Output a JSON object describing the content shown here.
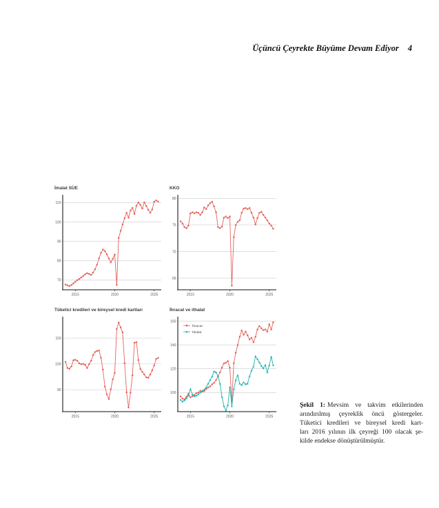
{
  "page": {
    "header": {
      "title": "Üçüncü Çeyrekte Büyüme Devam Ediyor",
      "page_number": "4"
    }
  },
  "caption": {
    "label": "Şekil 1:",
    "line1_rest": "Mevsim ve takvim etkilerinden",
    "lines": [
      "arındırılmış çeyreklik öncü göstergeler.",
      "Tüketici kredileri ve bireysel kredi kart-",
      "ları 2016 yılının ilk çeyreği 100 olacak şe-",
      "kilde endekse dönüştürülmüştür."
    ]
  },
  "colors": {
    "line_red": "#E4635B",
    "line_teal": "#18B3AB",
    "axis": "#3D3D3D",
    "grid": "#C9C9C9",
    "tick_label": "#555555",
    "legend_text": "#444444"
  },
  "chart_data": [
    {
      "type": "line",
      "title": "İmalat SÜE",
      "x_start": 2013.75,
      "x_step": 0.25,
      "xlim": [
        2013.4,
        2025.9
      ],
      "x_ticks": [
        2015,
        2020,
        2025
      ],
      "ylim": [
        65,
        113
      ],
      "y_ticks": [
        70,
        80,
        90,
        100,
        110
      ],
      "grid": true,
      "legend": false,
      "series": [
        {
          "name": "İmalat SÜE",
          "color_key": "line_red",
          "marker": "circle",
          "values": [
            67.7,
            67.3,
            66.9,
            67.5,
            68.3,
            69.2,
            70.0,
            70.6,
            71.4,
            72.2,
            73.0,
            73.6,
            73.2,
            72.7,
            73.9,
            75.6,
            78.0,
            81.2,
            84.1,
            85.8,
            85.0,
            83.3,
            81.2,
            79.2,
            81.0,
            83.2,
            67.6,
            91.8,
            95.5,
            98.8,
            102.0,
            104.8,
            102.3,
            106.0,
            107.3,
            104.2,
            108.5,
            110.1,
            108.9,
            107.0,
            110.2,
            108.3,
            106.3,
            104.8,
            106.5,
            110.5,
            111.2,
            110.6
          ]
        }
      ]
    },
    {
      "type": "line",
      "title": "KKO",
      "x_start": 2013.75,
      "x_step": 0.25,
      "xlim": [
        2013.4,
        2025.9
      ],
      "x_ticks": [
        2015,
        2020,
        2025
      ],
      "ylim": [
        62.8,
        80.3
      ],
      "y_ticks": [
        65,
        70,
        75,
        80
      ],
      "grid": true,
      "legend": false,
      "series": [
        {
          "name": "KKO",
          "color_key": "line_red",
          "marker": "circle",
          "values": [
            75.7,
            75.3,
            74.6,
            74.4,
            74.9,
            77.2,
            77.4,
            77.2,
            77.4,
            77.3,
            76.9,
            77.4,
            78.3,
            78.0,
            78.7,
            79.1,
            79.4,
            78.5,
            77.4,
            74.6,
            74.4,
            74.7,
            76.4,
            76.6,
            76.3,
            76.6,
            63.6,
            72.7,
            75.0,
            75.6,
            75.9,
            77.3,
            78.1,
            78.2,
            78.0,
            78.2,
            77.3,
            76.4,
            75.1,
            76.3,
            77.3,
            77.5,
            76.9,
            76.4,
            75.9,
            75.3,
            74.9,
            74.3
          ]
        }
      ]
    },
    {
      "type": "line",
      "title": "Tüketici kredileri ve bireysel kredi kartları",
      "x_start": 2013.75,
      "x_step": 0.25,
      "xlim": [
        2013.4,
        2025.9
      ],
      "x_ticks": [
        2015,
        2020,
        2025
      ],
      "ylim": [
        81.5,
        117.5
      ],
      "y_ticks": [
        90,
        100,
        110
      ],
      "grid": true,
      "legend": false,
      "series": [
        {
          "name": "Tüketici kredileri",
          "color_key": "line_red",
          "marker": "circle",
          "values": [
            100.8,
            98.4,
            98.1,
            99.0,
            101.4,
            101.6,
            101.2,
            100.2,
            99.9,
            100.0,
            99.6,
            98.4,
            99.9,
            101.2,
            103.4,
            104.6,
            105.0,
            105.2,
            102.4,
            97.8,
            91.2,
            88.2,
            86.4,
            90.2,
            94.0,
            96.5,
            113.5,
            116.0,
            114.1,
            112.2,
            100.3,
            89.0,
            83.1,
            88.9,
            95.6,
            108.2,
            108.4,
            101.5,
            98.0,
            96.9,
            95.9,
            94.8,
            94.6,
            95.9,
            97.5,
            99.4,
            101.9,
            102.3
          ]
        }
      ]
    },
    {
      "type": "line",
      "title": "İhracat ve ithalat",
      "x_start": 2013.75,
      "x_step": 0.25,
      "xlim": [
        2013.4,
        2025.9
      ],
      "x_ticks": [
        2015,
        2020,
        2025
      ],
      "ylim": [
        84,
        162
      ],
      "y_ticks": [
        100,
        120,
        140,
        160
      ],
      "grid": true,
      "legend": true,
      "series": [
        {
          "name": "İhracat",
          "color_key": "line_red",
          "marker": "circle",
          "values": [
            96.8,
            95.0,
            94.3,
            96.5,
            99.0,
            96.0,
            97.0,
            98.0,
            99.5,
            100.0,
            101.5,
            100.8,
            101.2,
            103.0,
            104.3,
            105.2,
            107.0,
            108.2,
            110.5,
            113.5,
            117.0,
            121.0,
            124.5,
            125.0,
            126.5,
            121.0,
            92.5,
            124.5,
            133.5,
            139.8,
            146.8,
            152.0,
            148.6,
            151.2,
            148.0,
            144.6,
            146.0,
            142.3,
            146.8,
            153.0,
            155.8,
            154.0,
            152.4,
            153.0,
            151.2,
            157.3,
            153.0,
            159.0
          ]
        },
        {
          "name": "İthalat",
          "color_key": "line_teal",
          "marker": "triangle",
          "values": [
            94.0,
            92.5,
            93.5,
            95.2,
            97.5,
            103.0,
            98.5,
            97.0,
            97.5,
            98.5,
            100.0,
            101.5,
            102.5,
            104.5,
            107.5,
            110.5,
            113.5,
            117.8,
            117.0,
            114.0,
            107.5,
            96.3,
            88.5,
            85.0,
            89.5,
            104.5,
            88.5,
            102.9,
            110.5,
            114.5,
            107.5,
            106.4,
            108.6,
            107.0,
            107.5,
            113.8,
            118.5,
            121.9,
            130.5,
            128.0,
            125.3,
            122.4,
            120.4,
            123.2,
            117.0,
            122.8,
            130.0,
            123.0
          ]
        }
      ]
    }
  ]
}
